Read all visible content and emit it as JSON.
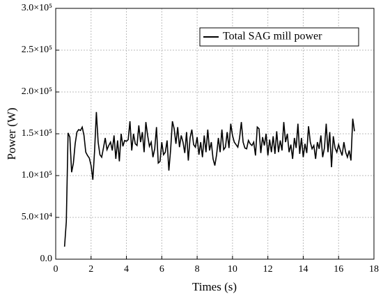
{
  "chart_data": {
    "type": "line",
    "xlabel": "Times (s)",
    "ylabel": "Power (W)",
    "series": [
      {
        "name": "Total SAG mill power",
        "color": "#000000",
        "x": [
          0.5,
          0.6,
          0.7,
          0.8,
          0.9,
          1.0,
          1.1,
          1.2,
          1.3,
          1.4,
          1.5,
          1.6,
          1.7,
          1.8,
          1.9,
          2.0,
          2.1,
          2.2,
          2.3,
          2.4,
          2.5,
          2.6,
          2.7,
          2.8,
          2.9,
          3.0,
          3.1,
          3.2,
          3.3,
          3.4,
          3.5,
          3.6,
          3.7,
          3.8,
          3.9,
          4.0,
          4.1,
          4.2,
          4.3,
          4.4,
          4.5,
          4.6,
          4.7,
          4.8,
          4.9,
          5.0,
          5.1,
          5.2,
          5.3,
          5.4,
          5.5,
          5.6,
          5.7,
          5.8,
          5.9,
          6.0,
          6.1,
          6.2,
          6.3,
          6.4,
          6.5,
          6.6,
          6.7,
          6.8,
          6.9,
          7.0,
          7.1,
          7.2,
          7.3,
          7.4,
          7.5,
          7.6,
          7.7,
          7.8,
          7.9,
          8.0,
          8.1,
          8.2,
          8.3,
          8.4,
          8.5,
          8.6,
          8.7,
          8.8,
          8.9,
          9.0,
          9.1,
          9.2,
          9.3,
          9.4,
          9.5,
          9.6,
          9.7,
          9.8,
          9.9,
          10.0,
          10.1,
          10.2,
          10.3,
          10.4,
          10.5,
          10.6,
          10.7,
          10.8,
          10.9,
          11.0,
          11.1,
          11.2,
          11.3,
          11.4,
          11.5,
          11.6,
          11.7,
          11.8,
          11.9,
          12.0,
          12.1,
          12.2,
          12.3,
          12.4,
          12.5,
          12.6,
          12.7,
          12.8,
          12.9,
          13.0,
          13.1,
          13.2,
          13.3,
          13.4,
          13.5,
          13.6,
          13.7,
          13.8,
          13.9,
          14.0,
          14.1,
          14.2,
          14.3,
          14.4,
          14.5,
          14.6,
          14.7,
          14.8,
          14.9,
          15.0,
          15.1,
          15.2,
          15.3,
          15.4,
          15.5,
          15.6,
          15.7,
          15.8,
          15.9,
          16.0,
          16.1,
          16.2,
          16.3,
          16.4,
          16.5,
          16.6,
          16.7,
          16.8,
          16.9
        ],
        "values": [
          15000,
          45000,
          151000,
          146000,
          104000,
          115000,
          138000,
          152000,
          155000,
          154000,
          158000,
          148000,
          128000,
          124000,
          121000,
          112000,
          95000,
          130000,
          176000,
          140000,
          125000,
          122000,
          133000,
          145000,
          131000,
          136000,
          140000,
          130000,
          148000,
          120000,
          142000,
          117000,
          150000,
          135000,
          142000,
          141000,
          143000,
          165000,
          130000,
          150000,
          138000,
          136000,
          160000,
          140000,
          152000,
          128000,
          164000,
          148000,
          135000,
          140000,
          122000,
          132000,
          158000,
          115000,
          117000,
          140000,
          125000,
          128000,
          142000,
          106000,
          131000,
          165000,
          156000,
          138000,
          158000,
          134000,
          148000,
          140000,
          127000,
          152000,
          118000,
          145000,
          155000,
          137000,
          134000,
          146000,
          125000,
          140000,
          122000,
          148000,
          128000,
          155000,
          130000,
          140000,
          120000,
          112000,
          125000,
          145000,
          128000,
          155000,
          131000,
          134000,
          152000,
          133000,
          162000,
          148000,
          140000,
          137000,
          134000,
          145000,
          164000,
          140000,
          133000,
          132000,
          142000,
          138000,
          136000,
          140000,
          124000,
          158000,
          156000,
          127000,
          146000,
          136000,
          150000,
          124000,
          143000,
          128000,
          147000,
          126000,
          153000,
          128000,
          142000,
          130000,
          164000,
          140000,
          150000,
          128000,
          137000,
          120000,
          145000,
          133000,
          162000,
          126000,
          145000,
          122000,
          138000,
          127000,
          159000,
          140000,
          132000,
          136000,
          120000,
          140000,
          132000,
          148000,
          122000,
          133000,
          162000,
          128000,
          152000,
          110000,
          147000,
          133000,
          128000,
          137000,
          130000,
          124000,
          140000,
          128000,
          122000,
          130000,
          118000,
          168000,
          153000
        ]
      }
    ],
    "xlim": [
      0,
      18
    ],
    "xticks": [
      0,
      2,
      4,
      6,
      8,
      10,
      12,
      14,
      16,
      18
    ],
    "ylim": [
      0,
      300000
    ],
    "yticks": [
      {
        "value": 0,
        "label": "0.0"
      },
      {
        "value": 50000,
        "label": "5.0×10⁴"
      },
      {
        "value": 100000,
        "label": "1.0×10⁵"
      },
      {
        "value": 150000,
        "label": "1.5×10⁵"
      },
      {
        "value": 200000,
        "label": "2.0×10⁵"
      },
      {
        "value": 250000,
        "label": "2.5×10⁵"
      },
      {
        "value": 300000,
        "label": "3.0×10⁵"
      }
    ],
    "grid": true,
    "legend": "upper right"
  }
}
